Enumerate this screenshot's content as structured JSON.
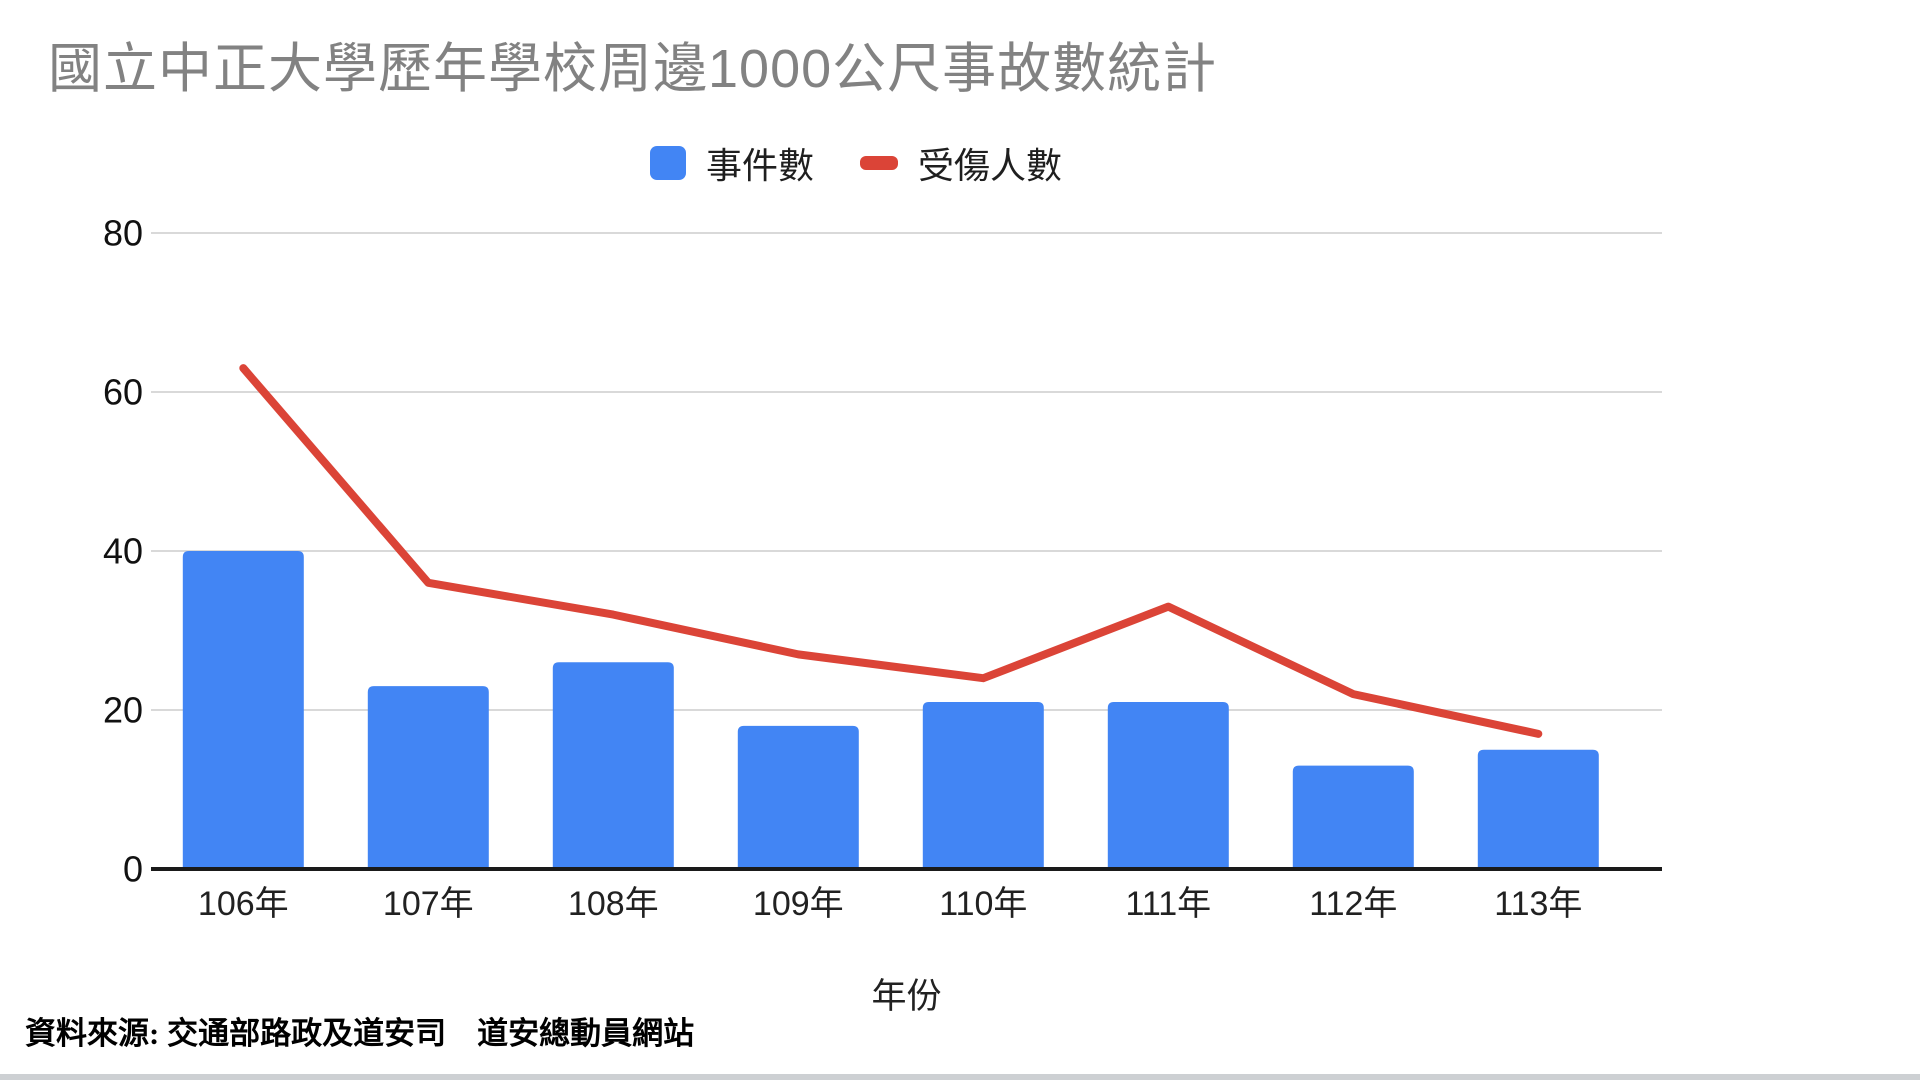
{
  "title": "國立中正大學歷年學校周邊1000公尺事故數統計",
  "legend": {
    "items": [
      {
        "label": "事件數",
        "swatch": "square",
        "color": "#4285f4"
      },
      {
        "label": "受傷人數",
        "swatch": "dash",
        "color": "#db4437"
      }
    ]
  },
  "x_axis_title": "年份",
  "source_note": "資料來源: 交通部路政及道安司　道安總動員網站",
  "colors": {
    "bar": "#4285f4",
    "line": "#db4437",
    "title_text": "#828282",
    "gridline": "#d9d9d9",
    "axis_baseline": "#1a1a1a",
    "tick_label": "#111111",
    "x_label": "#212121",
    "footer_strip": "#cdd0d3"
  },
  "chart_data": {
    "type": "bar",
    "subtype": "bar-line-combo",
    "title": "國立中正大學歷年學校周邊1000公尺事故數統計",
    "categories": [
      "106年",
      "107年",
      "108年",
      "109年",
      "110年",
      "111年",
      "112年",
      "113年"
    ],
    "series": [
      {
        "name": "事件數",
        "type": "bar",
        "color": "#4285f4",
        "values": [
          40,
          23,
          26,
          18,
          21,
          21,
          13,
          15
        ]
      },
      {
        "name": "受傷人數",
        "type": "line",
        "color": "#db4437",
        "values": [
          63,
          36,
          32,
          27,
          24,
          33,
          22,
          17
        ]
      }
    ],
    "xlabel": "年份",
    "ylabel": "",
    "ylim": [
      0,
      80
    ],
    "yticks": [
      0,
      20,
      40,
      60,
      80
    ],
    "grid": true,
    "legend_position": "top"
  }
}
